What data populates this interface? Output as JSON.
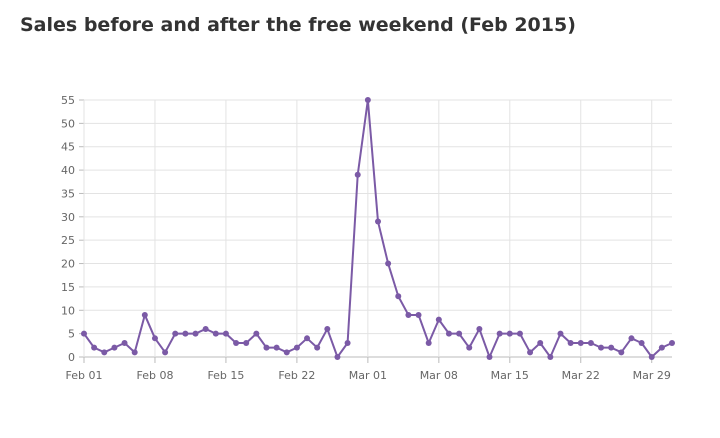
{
  "chart_data": {
    "type": "line",
    "title": "Sales before and after the free weekend (Feb 2015)",
    "xlabel": "",
    "ylabel": "",
    "ylim": [
      0,
      55
    ],
    "yticks": [
      0,
      5,
      10,
      15,
      20,
      25,
      30,
      35,
      40,
      45,
      50,
      55
    ],
    "xticks": [
      "Feb 01",
      "Feb 08",
      "Feb 15",
      "Feb 22",
      "Mar 01",
      "Mar 08",
      "Mar 15",
      "Mar 22",
      "Mar 29"
    ],
    "grid": true,
    "legend": "none",
    "color": "#7b5aa6",
    "x": [
      "2015-02-01",
      "2015-02-02",
      "2015-02-03",
      "2015-02-04",
      "2015-02-05",
      "2015-02-06",
      "2015-02-07",
      "2015-02-08",
      "2015-02-09",
      "2015-02-10",
      "2015-02-11",
      "2015-02-12",
      "2015-02-13",
      "2015-02-14",
      "2015-02-15",
      "2015-02-16",
      "2015-02-17",
      "2015-02-18",
      "2015-02-19",
      "2015-02-20",
      "2015-02-21",
      "2015-02-22",
      "2015-02-23",
      "2015-02-24",
      "2015-02-25",
      "2015-02-26",
      "2015-02-27",
      "2015-02-28",
      "2015-03-01",
      "2015-03-02",
      "2015-03-03",
      "2015-03-04",
      "2015-03-05",
      "2015-03-06",
      "2015-03-07",
      "2015-03-08",
      "2015-03-09",
      "2015-03-10",
      "2015-03-11",
      "2015-03-12",
      "2015-03-13",
      "2015-03-14",
      "2015-03-15",
      "2015-03-16",
      "2015-03-17",
      "2015-03-18",
      "2015-03-19",
      "2015-03-20",
      "2015-03-21",
      "2015-03-22",
      "2015-03-23",
      "2015-03-24",
      "2015-03-25",
      "2015-03-26",
      "2015-03-27",
      "2015-03-28",
      "2015-03-29",
      "2015-03-30",
      "2015-03-31"
    ],
    "values": [
      5,
      2,
      1,
      2,
      3,
      1,
      9,
      4,
      1,
      5,
      5,
      5,
      6,
      5,
      5,
      3,
      3,
      5,
      2,
      2,
      1,
      2,
      4,
      2,
      6,
      0,
      3,
      39,
      55,
      29,
      20,
      13,
      9,
      9,
      3,
      8,
      5,
      5,
      2,
      6,
      0,
      5,
      5,
      5,
      1,
      3,
      0,
      5,
      3,
      3,
      3,
      2,
      2,
      1,
      4,
      3,
      0,
      2,
      3
    ]
  }
}
